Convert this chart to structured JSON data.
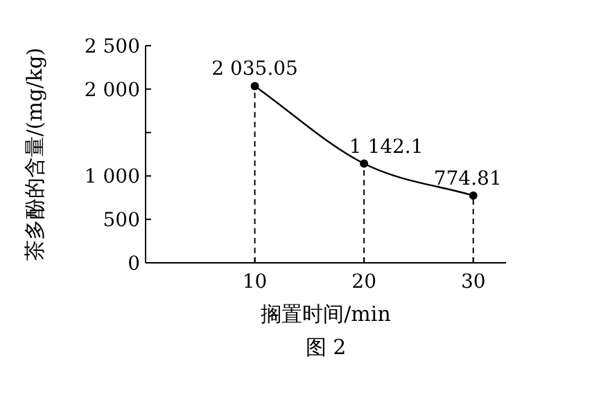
{
  "chart_data": {
    "type": "line",
    "xlabel": "搁置时间/min",
    "ylabel": "茶多酚的含量/(mg/kg)",
    "x": [
      10,
      20,
      30
    ],
    "series": [
      {
        "color": "#000000",
        "values": [
          2035.05,
          1142.1,
          774.81
        ],
        "value_labels": [
          "2 035.05",
          "1 142.1",
          "774.81"
        ]
      }
    ],
    "xlim": [
      0,
      33
    ],
    "ylim": [
      0,
      2500
    ],
    "xticks": [
      10,
      20,
      30
    ],
    "yticks": [
      0,
      500,
      {
        "value": 1000,
        "label": "1 000"
      },
      {
        "value": 1500,
        "label": null
      },
      {
        "value": 2000,
        "label": "2 000"
      },
      {
        "value": 2500,
        "label": "2 500"
      }
    ],
    "ref_lines": [
      {
        "axis": "x",
        "value": 10,
        "line_style": "dashed"
      },
      {
        "axis": "x",
        "value": 20,
        "line_style": "dashed"
      },
      {
        "axis": "x",
        "value": 30,
        "line_style": "dashed"
      }
    ],
    "marker": "circle",
    "grid": false,
    "annotations": [
      "图 2"
    ]
  }
}
